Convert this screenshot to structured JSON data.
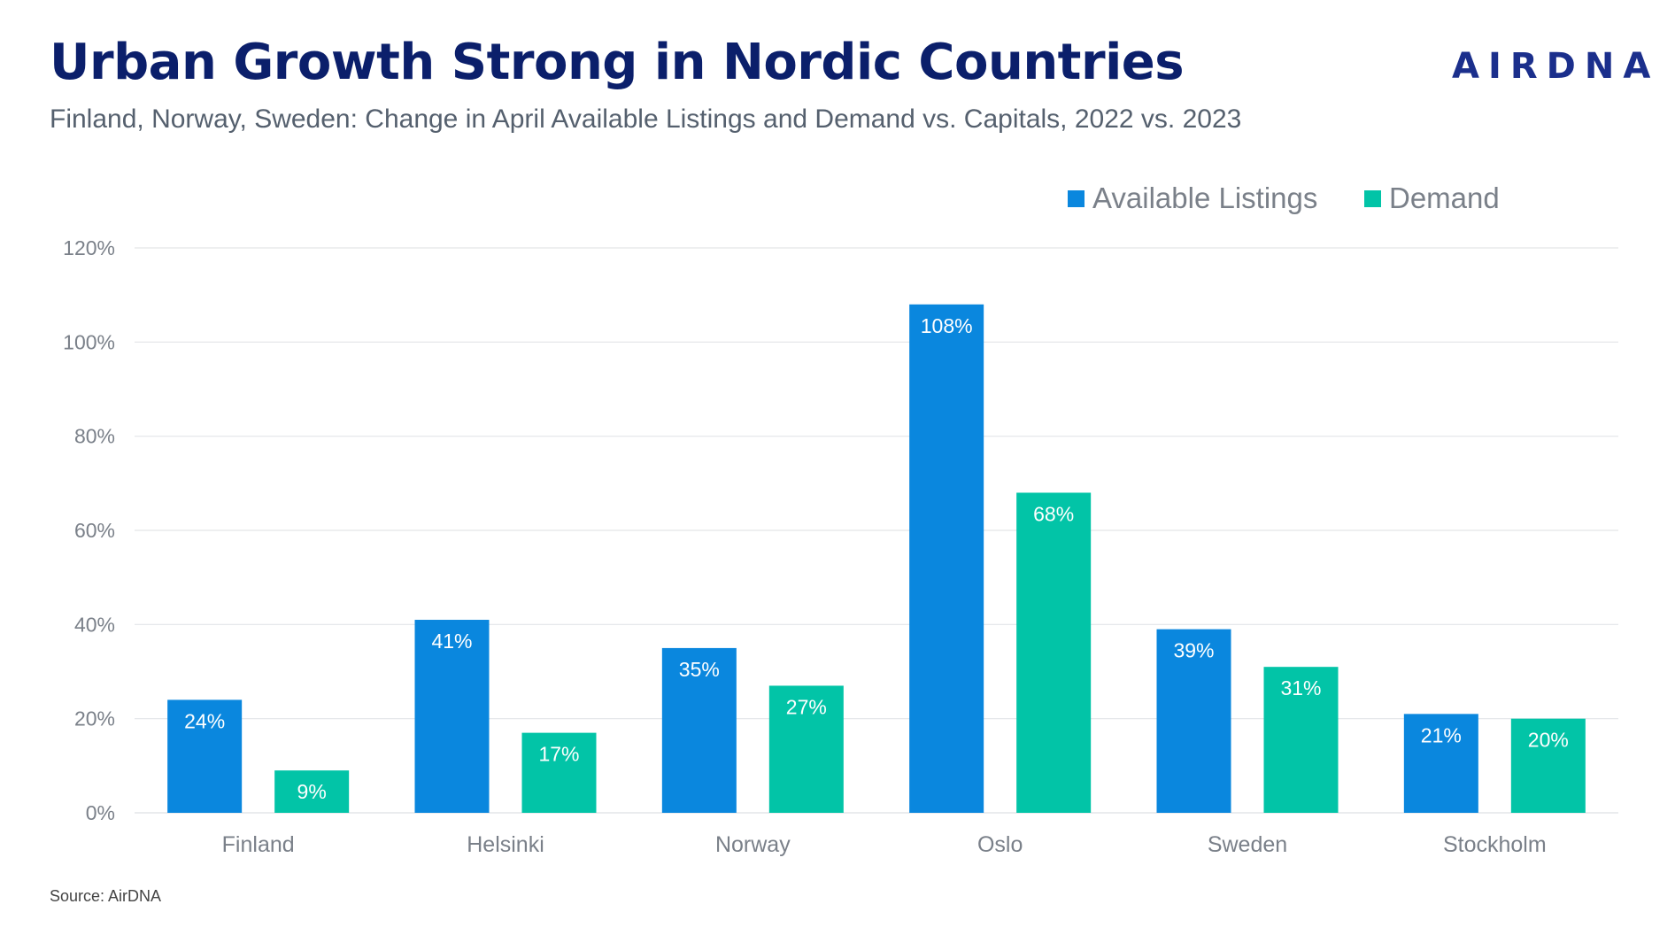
{
  "page": {
    "title": "Urban Growth Strong in Nordic Countries",
    "subtitle": "Finland, Norway, Sweden: Change in April Available Listings and Demand vs. Capitals, 2022 vs. 2023",
    "logo": "AIRDNA",
    "source": "Source: AirDNA"
  },
  "colors": {
    "title": "#0b1f6b",
    "available_listings": "#0a87de",
    "demand": "#02c4a7",
    "grid": "#e3e5e8"
  },
  "chart_data": {
    "type": "bar",
    "title": "Urban Growth Strong in Nordic Countries",
    "xlabel": "",
    "ylabel": "",
    "ylim": [
      0,
      120
    ],
    "ytick_step": 20,
    "ytick_suffix": "%",
    "grid": true,
    "legend_position": "top-right",
    "categories": [
      "Finland",
      "Helsinki",
      "Norway",
      "Oslo",
      "Sweden",
      "Stockholm"
    ],
    "series": [
      {
        "name": "Available Listings",
        "values": [
          24,
          41,
          35,
          108,
          39,
          21
        ],
        "labels": [
          "24%",
          "41%",
          "35%",
          "108%",
          "39%",
          "21%"
        ]
      },
      {
        "name": "Demand",
        "values": [
          9,
          17,
          27,
          68,
          31,
          20
        ],
        "labels": [
          "9%",
          "17%",
          "27%",
          "68%",
          "31%",
          "20%"
        ]
      }
    ]
  }
}
